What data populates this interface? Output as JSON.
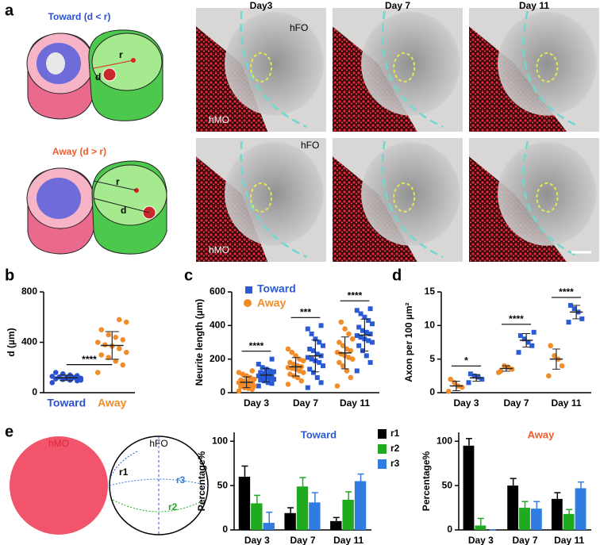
{
  "figure": {
    "panel_labels": [
      "a",
      "b",
      "c",
      "d",
      "e"
    ],
    "panel_a": {
      "toward": "Toward (d < r)",
      "away": "Away (d > r)",
      "r": "r",
      "d": "d",
      "days": [
        "Day3",
        "Day 7",
        "Day 11"
      ],
      "hfo": "hFO",
      "hmo": "hMO"
    },
    "panel_e": {
      "hmo": "hMO",
      "hfo": "hFO",
      "regions": [
        "r1",
        "r2",
        "r3"
      ]
    }
  },
  "chart_data": [
    {
      "type": "strip",
      "ylabel": "d (µm)",
      "categories": [
        "Toward",
        "Away"
      ],
      "colors": [
        "#2a52d0",
        "#f28c28"
      ],
      "values": [
        [
          80,
          95,
          100,
          105,
          110,
          115,
          120,
          120,
          125,
          130,
          135,
          140,
          150,
          160,
          100
        ],
        [
          160,
          220,
          250,
          280,
          300,
          320,
          350,
          370,
          380,
          400,
          420,
          440,
          460,
          500,
          560,
          580
        ]
      ],
      "means": [
        118,
        375
      ],
      "sds": [
        22,
        110
      ],
      "ylim": [
        0,
        800
      ],
      "yticks": [
        0,
        400,
        800
      ],
      "significance": [
        "****"
      ]
    },
    {
      "type": "strip",
      "ylabel": "Neurite length (µm)",
      "categories": [
        "Day 3",
        "Day 7",
        "Day 11"
      ],
      "series": [
        {
          "name": "Toward",
          "color": "#2a5bd7",
          "marker": "square",
          "values": [
            [
              40,
              55,
              60,
              70,
              75,
              80,
              85,
              90,
              95,
              100,
              105,
              110,
              115,
              120,
              125,
              130,
              140,
              150,
              170,
              200
            ],
            [
              30,
              60,
              90,
              120,
              140,
              160,
              180,
              190,
              200,
              210,
              220,
              230,
              250,
              260,
              280,
              300,
              320,
              350,
              380,
              400
            ],
            [
              130,
              180,
              220,
              250,
              280,
              300,
              310,
              320,
              330,
              340,
              350,
              360,
              370,
              390,
              410,
              430,
              450,
              470,
              490,
              500
            ]
          ],
          "means": [
            105,
            219,
            343
          ],
          "sds": [
            40,
            95,
            95
          ]
        },
        {
          "name": "Away",
          "color": "#f28c28",
          "marker": "circle",
          "values": [
            [
              10,
              20,
              25,
              30,
              35,
              40,
              45,
              50,
              55,
              60,
              60,
              65,
              70,
              75,
              80,
              90,
              100,
              110,
              120,
              130
            ],
            [
              50,
              70,
              90,
              100,
              110,
              120,
              130,
              140,
              145,
              150,
              155,
              160,
              170,
              180,
              190,
              200,
              220,
              240,
              260
            ],
            [
              40,
              90,
              130,
              160,
              180,
              200,
              210,
              220,
              230,
              240,
              250,
              260,
              280,
              300,
              320,
              350,
              380,
              420
            ]
          ],
          "means": [
            62,
            154,
            237
          ],
          "sds": [
            32,
            55,
            95
          ]
        }
      ],
      "ylim": [
        0,
        600
      ],
      "yticks": [
        0,
        200,
        400,
        600
      ],
      "significance": [
        "****",
        "***",
        "****"
      ],
      "legend": "top-left"
    },
    {
      "type": "strip",
      "ylabel": "Axon per 100 µm²",
      "categories": [
        "Day 3",
        "Day 7",
        "Day 11"
      ],
      "series": [
        {
          "color": "#2a5bd7",
          "marker": "square",
          "values": [
            [
              1.5,
              2,
              2.3,
              2.5,
              2.8
            ],
            [
              6,
              7,
              7.5,
              8,
              8.5,
              9
            ],
            [
              10.5,
              11,
              12,
              12.5,
              13
            ]
          ],
          "means": [
            2.2,
            7.8,
            12
          ],
          "sds": [
            0.5,
            1,
            1
          ]
        },
        {
          "color": "#f28c28",
          "marker": "circle",
          "values": [
            [
              0.2,
              0.8,
              1,
              1.5,
              2
            ],
            [
              3,
              3.5,
              3.8,
              4,
              3.2
            ],
            [
              2.5,
              4,
              5,
              5.5,
              7
            ]
          ],
          "means": [
            1,
            3.6,
            5
          ],
          "sds": [
            0.7,
            0.4,
            1.5
          ]
        }
      ],
      "ylim": [
        0,
        15
      ],
      "yticks": [
        0,
        5,
        10,
        15
      ],
      "significance": [
        "*",
        "****",
        "****"
      ]
    },
    {
      "type": "bar",
      "title": "Toward",
      "title_color": "#2a5bd7",
      "ylabel": "Percentage%",
      "categories": [
        "Day 3",
        "Day 7",
        "Day 11"
      ],
      "series": [
        {
          "name": "r1",
          "color": "#000000",
          "values": [
            60,
            19,
            10
          ],
          "errors": [
            12,
            6,
            4
          ]
        },
        {
          "name": "r2",
          "color": "#1faa1f",
          "values": [
            30,
            49,
            34
          ],
          "errors": [
            9,
            10,
            9
          ]
        },
        {
          "name": "r3",
          "color": "#2f7de0",
          "values": [
            8,
            31,
            55
          ],
          "errors": [
            12,
            11,
            8
          ]
        }
      ],
      "ylim": [
        0,
        110
      ],
      "yticks": [
        0,
        50,
        100
      ],
      "legend": "right"
    },
    {
      "type": "bar",
      "title": "Away",
      "title_color": "#f05a28",
      "ylabel": "Percentage%",
      "categories": [
        "Day 3",
        "Day 7",
        "Day 11"
      ],
      "series": [
        {
          "color": "#000000",
          "values": [
            95,
            50,
            35
          ],
          "errors": [
            8,
            8,
            7
          ]
        },
        {
          "color": "#1faa1f",
          "values": [
            5,
            25,
            18
          ],
          "errors": [
            8,
            7,
            5
          ]
        },
        {
          "color": "#2f7de0",
          "values": [
            0,
            24,
            47
          ],
          "errors": [
            0,
            8,
            7
          ]
        }
      ],
      "ylim": [
        0,
        110
      ],
      "yticks": [
        0,
        50,
        100
      ]
    }
  ]
}
